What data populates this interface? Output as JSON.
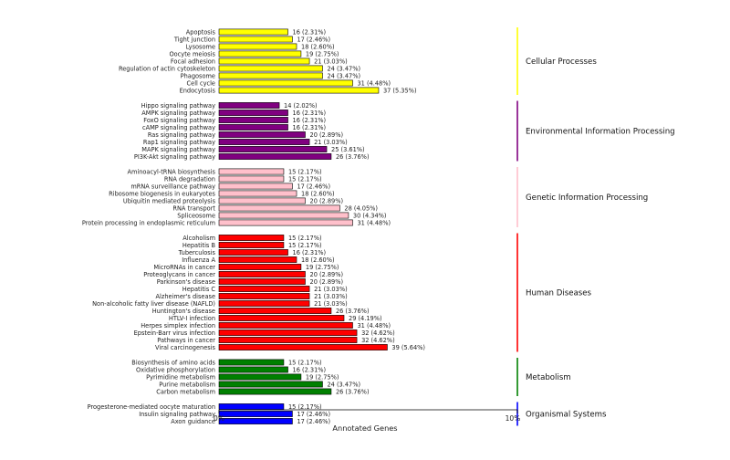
{
  "chart_data": {
    "type": "bar",
    "orientation": "horizontal",
    "xlabel": "Annotated Genes",
    "xlim": [
      0,
      10
    ],
    "x_ticks": [
      "0%",
      "10%"
    ],
    "groups": [
      {
        "name": "Cellular Processes",
        "color": "#ffff00",
        "bars": [
          {
            "label": "Apoptosis",
            "count": 16,
            "percent": 2.31,
            "text": "16 (2.31%)"
          },
          {
            "label": "Tight junction",
            "count": 17,
            "percent": 2.46,
            "text": "17 (2.46%)"
          },
          {
            "label": "Lysosome",
            "count": 18,
            "percent": 2.6,
            "text": "18 (2.60%)"
          },
          {
            "label": "Oocyte meiosis",
            "count": 19,
            "percent": 2.75,
            "text": "19 (2.75%)"
          },
          {
            "label": "Focal adhesion",
            "count": 21,
            "percent": 3.03,
            "text": "21 (3.03%)"
          },
          {
            "label": "Regulation of actin cytoskeleton",
            "count": 24,
            "percent": 3.47,
            "text": "24 (3.47%)"
          },
          {
            "label": "Phagosome",
            "count": 24,
            "percent": 3.47,
            "text": "24 (3.47%)"
          },
          {
            "label": "Cell cycle",
            "count": 31,
            "percent": 4.48,
            "text": "31 (4.48%)"
          },
          {
            "label": "Endocytosis",
            "count": 37,
            "percent": 5.35,
            "text": "37 (5.35%)"
          }
        ]
      },
      {
        "name": "Environmental Information Processing",
        "color": "#800080",
        "bars": [
          {
            "label": "Hippo signaling pathway",
            "count": 14,
            "percent": 2.02,
            "text": "14 (2.02%)"
          },
          {
            "label": "AMPK signaling pathway",
            "count": 16,
            "percent": 2.31,
            "text": "16 (2.31%)"
          },
          {
            "label": "FoxO signaling pathway",
            "count": 16,
            "percent": 2.31,
            "text": "16 (2.31%)"
          },
          {
            "label": "cAMP signaling pathway",
            "count": 16,
            "percent": 2.31,
            "text": "16 (2.31%)"
          },
          {
            "label": "Ras signaling pathway",
            "count": 20,
            "percent": 2.89,
            "text": "20 (2.89%)"
          },
          {
            "label": "Rap1 signaling pathway",
            "count": 21,
            "percent": 3.03,
            "text": "21 (3.03%)"
          },
          {
            "label": "MAPK signaling pathway",
            "count": 25,
            "percent": 3.61,
            "text": "25 (3.61%)"
          },
          {
            "label": "PI3K-Akt signaling pathway",
            "count": 26,
            "percent": 3.76,
            "text": "26 (3.76%)"
          }
        ]
      },
      {
        "name": "Genetic Information Processing",
        "color": "#ffc0cb",
        "bars": [
          {
            "label": "Aminoacyl-tRNA biosynthesis",
            "count": 15,
            "percent": 2.17,
            "text": "15 (2.17%)"
          },
          {
            "label": "RNA degradation",
            "count": 15,
            "percent": 2.17,
            "text": "15 (2.17%)"
          },
          {
            "label": "mRNA surveillance pathway",
            "count": 17,
            "percent": 2.46,
            "text": "17 (2.46%)"
          },
          {
            "label": "Ribosome biogenesis in eukaryotes",
            "count": 18,
            "percent": 2.6,
            "text": "18 (2.60%)"
          },
          {
            "label": "Ubiquitin mediated proteolysis",
            "count": 20,
            "percent": 2.89,
            "text": "20 (2.89%)"
          },
          {
            "label": "RNA transport",
            "count": 28,
            "percent": 4.05,
            "text": "28 (4.05%)"
          },
          {
            "label": "Spliceosome",
            "count": 30,
            "percent": 4.34,
            "text": "30 (4.34%)"
          },
          {
            "label": "Protein processing in endoplasmic reticulum",
            "count": 31,
            "percent": 4.48,
            "text": "31 (4.48%)"
          }
        ]
      },
      {
        "name": "Human Diseases",
        "color": "#ff0000",
        "bars": [
          {
            "label": "Alcoholism",
            "count": 15,
            "percent": 2.17,
            "text": "15 (2.17%)"
          },
          {
            "label": "Hepatitis B",
            "count": 15,
            "percent": 2.17,
            "text": "15 (2.17%)"
          },
          {
            "label": "Tuberculosis",
            "count": 16,
            "percent": 2.31,
            "text": "16 (2.31%)"
          },
          {
            "label": "Influenza A",
            "count": 18,
            "percent": 2.6,
            "text": "18 (2.60%)"
          },
          {
            "label": "MicroRNAs in cancer",
            "count": 19,
            "percent": 2.75,
            "text": "19 (2.75%)"
          },
          {
            "label": "Proteoglycans in cancer",
            "count": 20,
            "percent": 2.89,
            "text": "20 (2.89%)"
          },
          {
            "label": "Parkinson's disease",
            "count": 20,
            "percent": 2.89,
            "text": "20 (2.89%)"
          },
          {
            "label": "Hepatitis C",
            "count": 21,
            "percent": 3.03,
            "text": "21 (3.03%)"
          },
          {
            "label": "Alzheimer's disease",
            "count": 21,
            "percent": 3.03,
            "text": "21 (3.03%)"
          },
          {
            "label": "Non-alcoholic fatty liver disease (NAFLD)",
            "count": 21,
            "percent": 3.03,
            "text": "21 (3.03%)"
          },
          {
            "label": "Huntington's disease",
            "count": 26,
            "percent": 3.76,
            "text": "26 (3.76%)"
          },
          {
            "label": "HTLV-I infection",
            "count": 29,
            "percent": 4.19,
            "text": "29 (4.19%)"
          },
          {
            "label": "Herpes simplex infection",
            "count": 31,
            "percent": 4.48,
            "text": "31 (4.48%)"
          },
          {
            "label": "Epstein-Barr virus infection",
            "count": 32,
            "percent": 4.62,
            "text": "32 (4.62%)"
          },
          {
            "label": "Pathways in cancer",
            "count": 32,
            "percent": 4.62,
            "text": "32 (4.62%)"
          },
          {
            "label": "Viral carcinogenesis",
            "count": 39,
            "percent": 5.64,
            "text": "39 (5.64%)"
          }
        ]
      },
      {
        "name": "Metabolism",
        "color": "#008000",
        "bars": [
          {
            "label": "Biosynthesis of amino acids",
            "count": 15,
            "percent": 2.17,
            "text": "15 (2.17%)"
          },
          {
            "label": "Oxidative phosphorylation",
            "count": 16,
            "percent": 2.31,
            "text": "16 (2.31%)"
          },
          {
            "label": "Pyrimidine metabolism",
            "count": 19,
            "percent": 2.75,
            "text": "19 (2.75%)"
          },
          {
            "label": "Purine metabolism",
            "count": 24,
            "percent": 3.47,
            "text": "24 (3.47%)"
          },
          {
            "label": "Carbon metabolism",
            "count": 26,
            "percent": 3.76,
            "text": "26 (3.76%)"
          }
        ]
      },
      {
        "name": "Organismal Systems",
        "color": "#0000ff",
        "bars": [
          {
            "label": "Progesterone-mediated oocyte maturation",
            "count": 15,
            "percent": 2.17,
            "text": "15 (2.17%)"
          },
          {
            "label": "Insulin signaling pathway",
            "count": 17,
            "percent": 2.46,
            "text": "17 (2.46%)"
          },
          {
            "label": "Axon guidance",
            "count": 17,
            "percent": 2.46,
            "text": "17 (2.46%)"
          }
        ]
      }
    ]
  }
}
